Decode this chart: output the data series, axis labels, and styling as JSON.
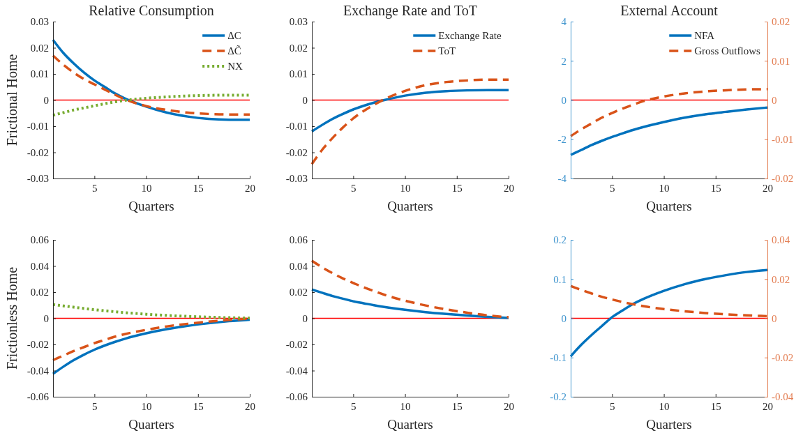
{
  "chart_data": [
    {
      "type": "line",
      "title": "Relative Consumption",
      "ylabel": "Frictional Home",
      "xlabel": "Quarters",
      "x": [
        1,
        2,
        3,
        4,
        5,
        6,
        7,
        8,
        10,
        12,
        14,
        16,
        18,
        20
      ],
      "xlim": [
        1,
        20
      ],
      "xticks": [
        5,
        10,
        15,
        20
      ],
      "ylim": [
        -0.03,
        0.03
      ],
      "yticks": [
        -0.03,
        -0.02,
        -0.01,
        0,
        0.01,
        0.02,
        0.03
      ],
      "legend": "top right",
      "ref_lines": [
        {
          "axis": "y",
          "value": 0,
          "color": "#ff0000"
        }
      ],
      "series": [
        {
          "name": "ΔC",
          "color": "#0072bd",
          "line_style": "solid",
          "values": [
            0.023,
            0.018,
            0.014,
            0.0105,
            0.0075,
            0.005,
            0.0025,
            0.0005,
            -0.0025,
            -0.0048,
            -0.0063,
            -0.0072,
            -0.0075,
            -0.0075
          ]
        },
        {
          "name": "ΔC̃",
          "color": "#d95319",
          "line_style": "dashed",
          "values": [
            0.017,
            0.0135,
            0.0105,
            0.008,
            0.006,
            0.004,
            0.002,
            0.0002,
            -0.0023,
            -0.0038,
            -0.0048,
            -0.0053,
            -0.0055,
            -0.0055
          ]
        },
        {
          "name": "NX",
          "color": "#77ac30",
          "line_style": "dotted",
          "values": [
            -0.0058,
            -0.0048,
            -0.0038,
            -0.003,
            -0.0022,
            -0.0014,
            -0.0007,
            -0.0001,
            0.0007,
            0.0012,
            0.0016,
            0.0018,
            0.0019,
            0.0019
          ]
        }
      ]
    },
    {
      "type": "line",
      "title": "Exchange Rate and ToT",
      "xlabel": "Quarters",
      "x": [
        1,
        2,
        3,
        4,
        5,
        6,
        7,
        8,
        10,
        12,
        14,
        16,
        18,
        20
      ],
      "xlim": [
        1,
        20
      ],
      "xticks": [
        5,
        10,
        15,
        20
      ],
      "ylim": [
        -0.03,
        0.03
      ],
      "yticks": [
        -0.03,
        -0.02,
        -0.01,
        0,
        0.01,
        0.02,
        0.03
      ],
      "legend": "top right",
      "ref_lines": [
        {
          "axis": "y",
          "value": 0,
          "color": "#ff0000"
        }
      ],
      "series": [
        {
          "name": "Exchange Rate",
          "color": "#0072bd",
          "line_style": "solid",
          "values": [
            -0.012,
            -0.0095,
            -0.0072,
            -0.0053,
            -0.0036,
            -0.0022,
            -0.001,
            0,
            0.0017,
            0.0028,
            0.0034,
            0.0037,
            0.0038,
            0.0038
          ]
        },
        {
          "name": "ToT",
          "color": "#d95319",
          "line_style": "dashed",
          "values": [
            -0.0245,
            -0.019,
            -0.0145,
            -0.0105,
            -0.007,
            -0.0042,
            -0.0018,
            0.0003,
            0.0035,
            0.0057,
            0.0069,
            0.0075,
            0.0078,
            0.0078
          ]
        }
      ]
    },
    {
      "type": "line",
      "title": "External Account",
      "xlabel": "Quarters",
      "x": [
        1,
        2,
        3,
        4,
        5,
        6,
        7,
        8,
        10,
        12,
        14,
        16,
        18,
        20
      ],
      "xlim": [
        1,
        20
      ],
      "xticks": [
        5,
        10,
        15,
        20
      ],
      "ylim": [
        -4,
        4
      ],
      "yticks": [
        -4,
        -2,
        0,
        2,
        4
      ],
      "y2lim": [
        -0.02,
        0.02
      ],
      "y2ticks": [
        -0.02,
        -0.01,
        0,
        0.01,
        0.02
      ],
      "legend": "top right",
      "ref_lines": [
        {
          "axis": "y",
          "value": 0,
          "color": "#ff0000"
        }
      ],
      "series": [
        {
          "name": "NFA",
          "color": "#0072bd",
          "line_style": "solid",
          "values": [
            -2.8,
            -2.55,
            -2.3,
            -2.08,
            -1.88,
            -1.7,
            -1.53,
            -1.38,
            -1.12,
            -0.9,
            -0.73,
            -0.6,
            -0.48,
            -0.38
          ]
        },
        {
          "name": "Gross Outflows",
          "color": "#d95319",
          "line_style": "dashed",
          "axis": "y2",
          "values": [
            -0.0092,
            -0.0075,
            -0.006,
            -0.0045,
            -0.0033,
            -0.0022,
            -0.0012,
            -0.0003,
            0.0009,
            0.0017,
            0.0022,
            0.0025,
            0.0027,
            0.0028
          ]
        }
      ]
    },
    {
      "type": "line",
      "ylabel": "Frictionless Home",
      "xlabel": "Quarters",
      "x": [
        1,
        2,
        3,
        4,
        5,
        6,
        7,
        8,
        10,
        12,
        14,
        16,
        18,
        20
      ],
      "xlim": [
        1,
        20
      ],
      "xticks": [
        5,
        10,
        15,
        20
      ],
      "ylim": [
        -0.06,
        0.06
      ],
      "yticks": [
        -0.06,
        -0.04,
        -0.02,
        0,
        0.02,
        0.04,
        0.06
      ],
      "ref_lines": [
        {
          "axis": "y",
          "value": 0,
          "color": "#ff0000"
        }
      ],
      "series": [
        {
          "color": "#0072bd",
          "line_style": "solid",
          "values": [
            -0.0425,
            -0.037,
            -0.032,
            -0.0278,
            -0.024,
            -0.0208,
            -0.018,
            -0.0155,
            -0.0115,
            -0.0083,
            -0.0058,
            -0.0038,
            -0.0022,
            -0.001
          ]
        },
        {
          "color": "#d95319",
          "line_style": "dashed",
          "values": [
            -0.032,
            -0.0285,
            -0.025,
            -0.022,
            -0.019,
            -0.0165,
            -0.014,
            -0.012,
            -0.0088,
            -0.0062,
            -0.0042,
            -0.0026,
            -0.0013,
            -0.0003
          ]
        },
        {
          "color": "#77ac30",
          "line_style": "dotted",
          "values": [
            0.0105,
            0.0095,
            0.0085,
            0.0075,
            0.0066,
            0.0058,
            0.005,
            0.0043,
            0.0031,
            0.0022,
            0.0015,
            0.0009,
            0.0005,
            0.0002
          ]
        }
      ]
    },
    {
      "type": "line",
      "xlabel": "Quarters",
      "x": [
        1,
        2,
        3,
        4,
        5,
        6,
        7,
        8,
        10,
        12,
        14,
        16,
        18,
        20
      ],
      "xlim": [
        1,
        20
      ],
      "xticks": [
        5,
        10,
        15,
        20
      ],
      "ylim": [
        -0.06,
        0.06
      ],
      "yticks": [
        -0.06,
        -0.04,
        -0.02,
        0,
        0.02,
        0.04,
        0.06
      ],
      "ref_lines": [
        {
          "axis": "y",
          "value": 0,
          "color": "#ff0000"
        }
      ],
      "series": [
        {
          "color": "#0072bd",
          "line_style": "solid",
          "values": [
            0.022,
            0.0195,
            0.017,
            0.015,
            0.013,
            0.0115,
            0.01,
            0.0087,
            0.0065,
            0.0047,
            0.0033,
            0.0021,
            0.0011,
            0.0003
          ]
        },
        {
          "color": "#d95319",
          "line_style": "dashed",
          "values": [
            0.044,
            0.039,
            0.0345,
            0.0305,
            0.027,
            0.0238,
            0.0208,
            0.018,
            0.0135,
            0.0098,
            0.0068,
            0.0043,
            0.0022,
            0.0008
          ]
        }
      ]
    },
    {
      "type": "line",
      "xlabel": "Quarters",
      "x": [
        1,
        2,
        3,
        4,
        5,
        6,
        7,
        8,
        10,
        12,
        14,
        16,
        18,
        20
      ],
      "xlim": [
        1,
        20
      ],
      "xticks": [
        5,
        10,
        15,
        20
      ],
      "ylim": [
        -0.2,
        0.2
      ],
      "yticks": [
        -0.2,
        -0.1,
        0,
        0.1,
        0.2
      ],
      "y2lim": [
        -0.04,
        0.04
      ],
      "y2ticks": [
        -0.04,
        -0.02,
        0,
        0.02,
        0.04
      ],
      "ref_lines": [
        {
          "axis": "y",
          "value": 0,
          "color": "#ff0000"
        }
      ],
      "series": [
        {
          "color": "#0072bd",
          "line_style": "solid",
          "values": [
            -0.097,
            -0.068,
            -0.043,
            -0.02,
            0.003,
            0.02,
            0.036,
            0.049,
            0.07,
            0.087,
            0.1,
            0.11,
            0.118,
            0.123
          ]
        },
        {
          "color": "#d95319",
          "line_style": "dashed",
          "axis": "y2",
          "values": [
            0.0165,
            0.0145,
            0.0127,
            0.011,
            0.0096,
            0.0083,
            0.0072,
            0.0062,
            0.0047,
            0.0036,
            0.0027,
            0.002,
            0.0015,
            0.0011
          ]
        }
      ]
    }
  ]
}
